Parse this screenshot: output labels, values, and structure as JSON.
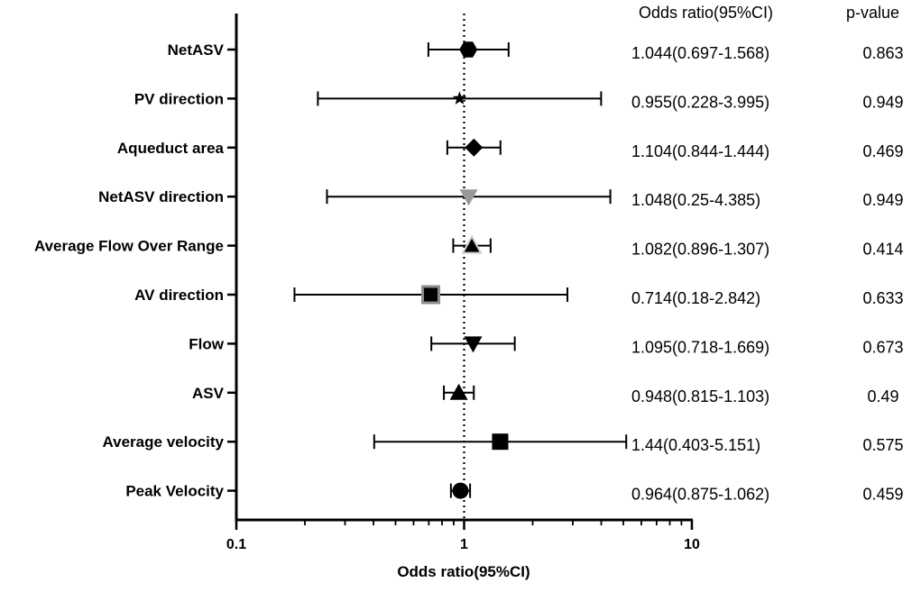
{
  "chart_data": {
    "type": "forest",
    "xscale": "log",
    "xlim": [
      0.1,
      10
    ],
    "reference_line": 1,
    "xlabel": "Odds ratio(95%CI)",
    "x_ticks": [
      {
        "value": 0.1,
        "label": "0.1"
      },
      {
        "value": 1,
        "label": "1"
      },
      {
        "value": 10,
        "label": "10"
      }
    ],
    "column_headers": {
      "or": "Odds ratio(95%CI)",
      "p": "p-value"
    },
    "rows": [
      {
        "label": "NetASV",
        "or": 1.044,
        "lo": 0.697,
        "hi": 1.568,
        "or_text": "1.044(0.697-1.568)",
        "p_text": "0.863",
        "marker": "hexagon",
        "color": "#000000"
      },
      {
        "label": "PV direction",
        "or": 0.955,
        "lo": 0.228,
        "hi": 3.995,
        "or_text": "0.955(0.228-3.995)",
        "p_text": "0.949",
        "marker": "star",
        "color": "#000000"
      },
      {
        "label": "Aqueduct area",
        "or": 1.104,
        "lo": 0.844,
        "hi": 1.444,
        "or_text": "1.104(0.844-1.444)",
        "p_text": "0.469",
        "marker": "diamond",
        "color": "#000000"
      },
      {
        "label": "NetASV direction",
        "or": 1.048,
        "lo": 0.25,
        "hi": 4.385,
        "or_text": "1.048(0.25-4.385)",
        "p_text": "0.949",
        "marker": "triangle-down",
        "color": "#999999"
      },
      {
        "label": "Average Flow Over Range",
        "or": 1.082,
        "lo": 0.896,
        "hi": 1.307,
        "or_text": "1.082(0.896-1.307)",
        "p_text": "0.414",
        "marker": "triangle-up-outlined",
        "color": "#000000"
      },
      {
        "label": "AV direction",
        "or": 0.714,
        "lo": 0.18,
        "hi": 2.842,
        "or_text": "0.714(0.18-2.842)",
        "p_text": "0.633",
        "marker": "square-outlined",
        "color": "#000000"
      },
      {
        "label": "Flow",
        "or": 1.095,
        "lo": 0.718,
        "hi": 1.669,
        "or_text": "1.095(0.718-1.669)",
        "p_text": "0.673",
        "marker": "triangle-down",
        "color": "#000000"
      },
      {
        "label": "ASV",
        "or": 0.948,
        "lo": 0.815,
        "hi": 1.103,
        "or_text": "0.948(0.815-1.103)",
        "p_text": "0.49",
        "marker": "triangle-up",
        "color": "#000000"
      },
      {
        "label": "Average velocity",
        "or": 1.44,
        "lo": 0.403,
        "hi": 5.151,
        "or_text": "1.44(0.403-5.151)",
        "p_text": "0.575",
        "marker": "square",
        "color": "#000000"
      },
      {
        "label": "Peak Velocity",
        "or": 0.964,
        "lo": 0.875,
        "hi": 1.062,
        "or_text": "0.964(0.875-1.062)",
        "p_text": "0.459",
        "marker": "circle",
        "color": "#000000"
      }
    ]
  }
}
